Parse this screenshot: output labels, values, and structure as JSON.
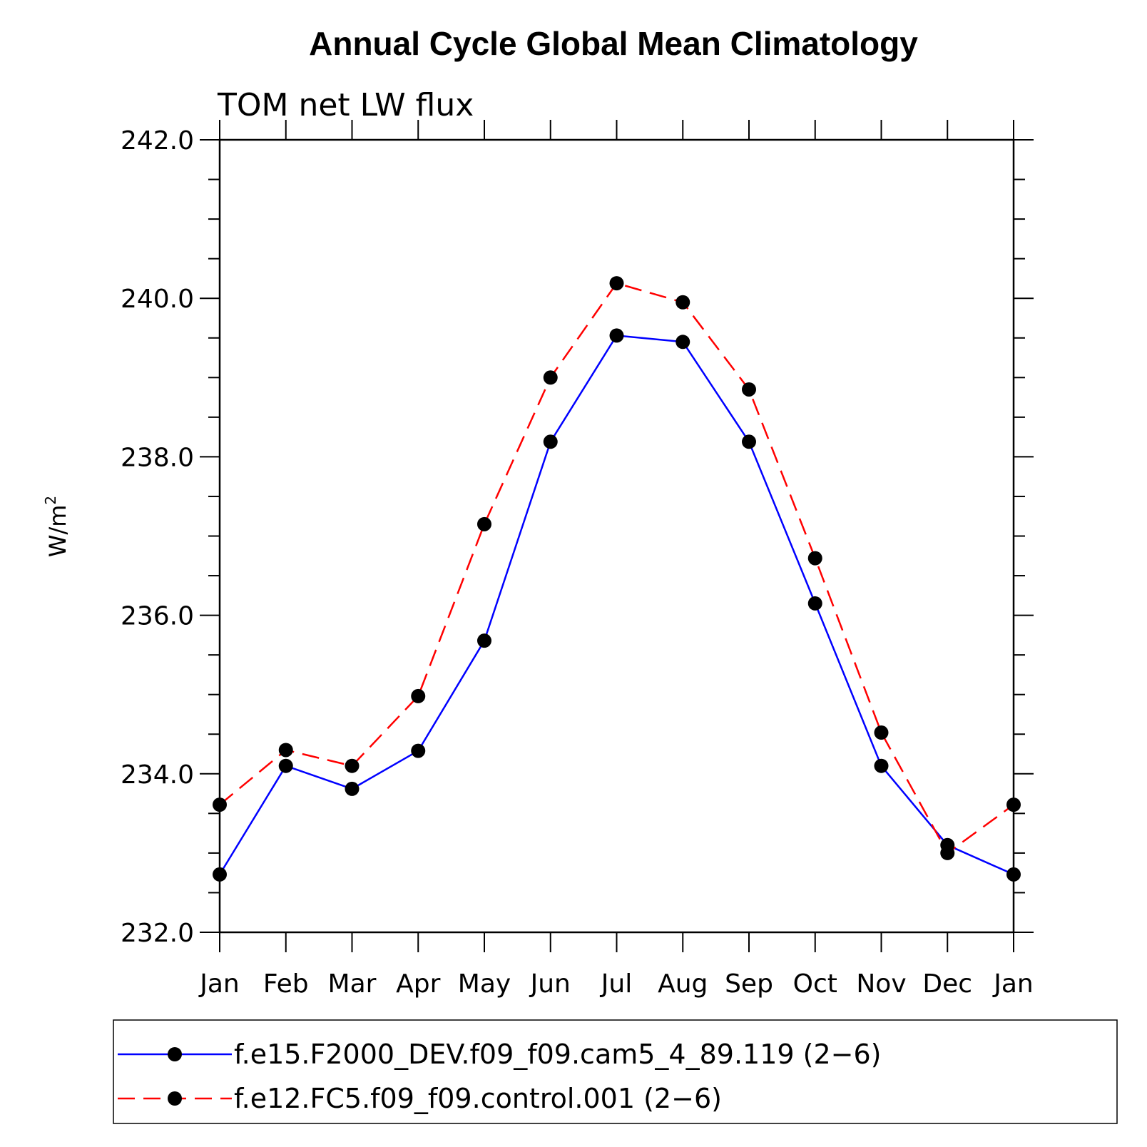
{
  "chart_data": {
    "type": "line",
    "title": "Annual Cycle Global Mean Climatology",
    "subtitle": "TOM net LW flux",
    "ylabel": "W/m",
    "ylabel_superscript": "2",
    "xlabel": "",
    "categories": [
      "Jan",
      "Feb",
      "Mar",
      "Apr",
      "May",
      "Jun",
      "Jul",
      "Aug",
      "Sep",
      "Oct",
      "Nov",
      "Dec",
      "Jan"
    ],
    "ylim": [
      232.0,
      242.0
    ],
    "yticks": [
      "232.0",
      "234.0",
      "236.0",
      "238.0",
      "240.0",
      "242.0"
    ],
    "grid": false,
    "legend_position": "bottom",
    "series": [
      {
        "name": "f.e15.F2000_DEV.f09_f09.cam5_4_89.119 (2−6)",
        "color": "#0000ff",
        "dash": "solid",
        "values": [
          232.73,
          234.1,
          233.81,
          234.29,
          235.68,
          238.19,
          239.53,
          239.45,
          238.19,
          236.15,
          234.1,
          233.1,
          232.73
        ]
      },
      {
        "name": "f.e12.FC5.f09_f09.control.001 (2−6)",
        "color": "#ff0000",
        "dash": "dashed",
        "values": [
          233.61,
          234.3,
          234.1,
          234.98,
          237.15,
          239.0,
          240.19,
          239.95,
          238.85,
          236.72,
          234.52,
          233.0,
          233.61
        ]
      }
    ]
  }
}
